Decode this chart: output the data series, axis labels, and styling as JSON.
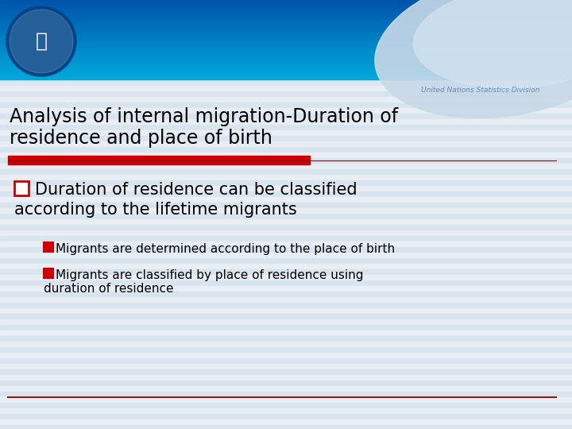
{
  "title_line1": "Analysis of internal migration-Duration of",
  "title_line2": "residence and place of birth",
  "subtitle_label": "United Nations Statistics Division",
  "main_bullet_line1": "Duration of residence can be classified",
  "main_bullet_line2": "according to the lifetime migrants",
  "sub_bullet1": "Migrants are determined according to the place of birth",
  "sub_bullet2_line1": "Migrants are classified by place of residence using",
  "sub_bullet2_line2": "duration of residence",
  "bg_color": "#dce8f0",
  "header_blue_dark": "#0055aa",
  "header_blue_light": "#00aadd",
  "title_color": "#000000",
  "red_bar_color": "#cc0000",
  "dark_red_line": "#7a1010",
  "bullet_red": "#cc0000",
  "text_color": "#000000",
  "un_label_color": "#6688bb",
  "stripe_light": "#e8eef4",
  "stripe_dark": "#d8e4ee",
  "swoosh_color": "#c8d8e8",
  "bottom_line_color": "#8b1a1a"
}
